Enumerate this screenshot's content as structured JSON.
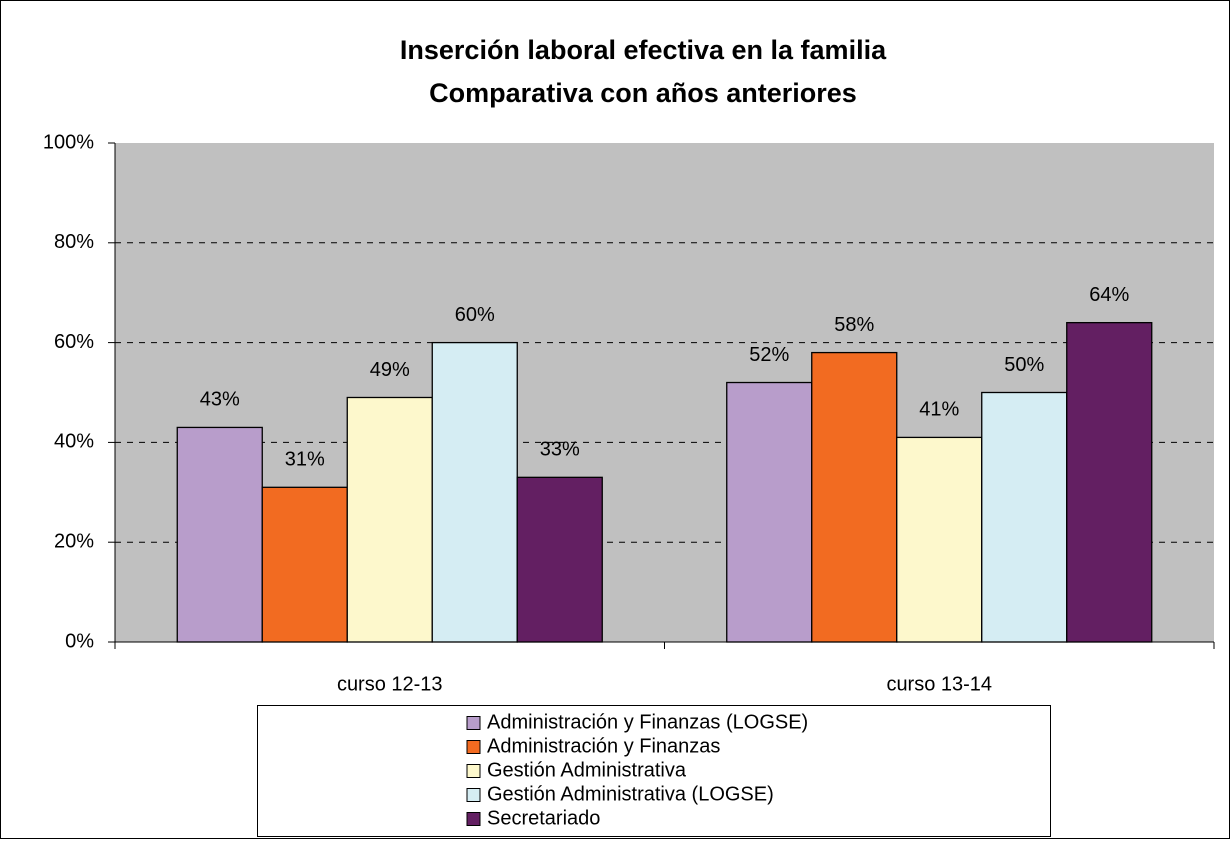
{
  "chart_data": {
    "type": "bar",
    "title": [
      "Inserción laboral efectiva en la familia",
      "Comparativa con años anteriores"
    ],
    "categories": [
      "curso 12-13",
      "curso 13-14"
    ],
    "series": [
      {
        "name": "Administración y Finanzas (LOGSE)",
        "color": "#b89dcb",
        "values": [
          43,
          52
        ],
        "value_labels": [
          "43%",
          "52%"
        ]
      },
      {
        "name": "Administración y Finanzas",
        "color": "#f26b21",
        "values": [
          31,
          58
        ],
        "value_labels": [
          "31%",
          "58%"
        ]
      },
      {
        "name": "Gestión Administrativa",
        "color": "#fdf8cc",
        "values": [
          49,
          41
        ],
        "value_labels": [
          "49%",
          "41%"
        ]
      },
      {
        "name": "Gestión Administrativa (LOGSE)",
        "color": "#d5edf3",
        "values": [
          60,
          50
        ],
        "value_labels": [
          "60%",
          "50%"
        ]
      },
      {
        "name": "Secretariado",
        "color": "#631f62",
        "values": [
          33,
          64
        ],
        "value_labels": [
          "33%",
          "64%"
        ]
      }
    ],
    "ylim": [
      0,
      100
    ],
    "yticks": [
      {
        "value": 0,
        "label": "0%"
      },
      {
        "value": 20,
        "label": "20%"
      },
      {
        "value": 40,
        "label": "40%"
      },
      {
        "value": 60,
        "label": "60%"
      },
      {
        "value": 80,
        "label": "80%"
      },
      {
        "value": 100,
        "label": "100%"
      }
    ],
    "grid": true,
    "legend": "bottom"
  }
}
